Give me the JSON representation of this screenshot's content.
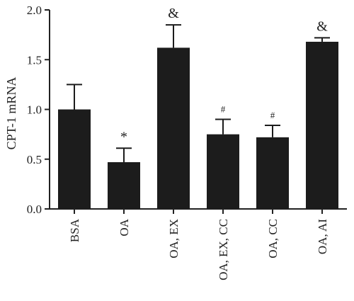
{
  "chart_data": {
    "type": "bar",
    "ylabel": "CPT-1 mRNA",
    "xlabel": "",
    "ylim": [
      0,
      2.0
    ],
    "yticks": [
      "0.0",
      "0.5",
      "1.0",
      "1.5",
      "2.0"
    ],
    "ytick_values": [
      0,
      0.5,
      1.0,
      1.5,
      2.0
    ],
    "categories": [
      "BSA",
      "OA",
      "OA, EX",
      "OA, EX, CC",
      "OA, CC",
      "OA, AI"
    ],
    "values": [
      1.0,
      0.47,
      1.62,
      0.75,
      0.72,
      1.68
    ],
    "errors": [
      0.25,
      0.14,
      0.23,
      0.15,
      0.12,
      0.04
    ],
    "annotations": [
      "",
      "*",
      "&",
      "#",
      "#",
      "&"
    ],
    "bar_color": "#1c1c1c",
    "grid": false
  }
}
